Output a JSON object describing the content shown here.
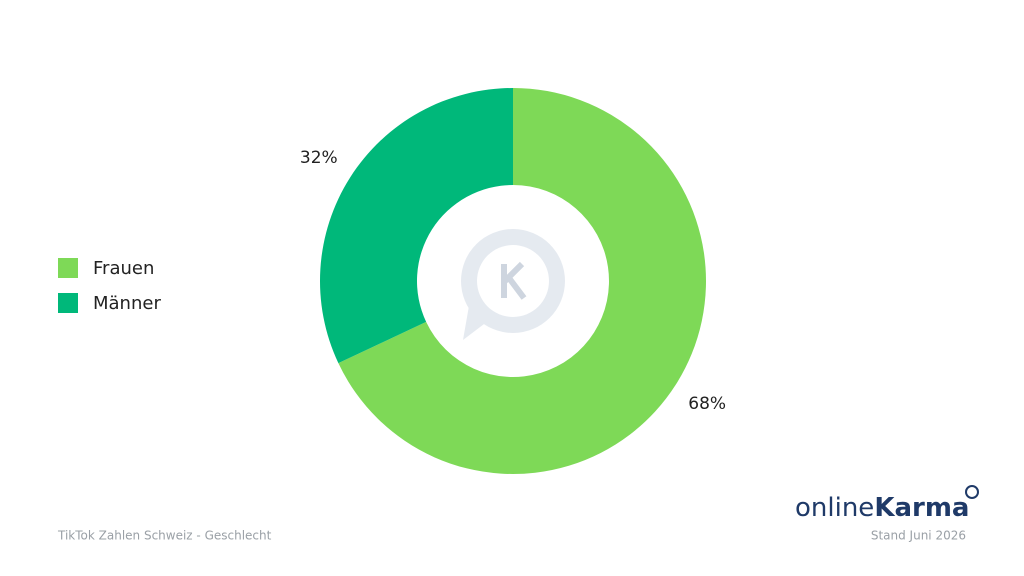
{
  "chart_data": {
    "type": "donut",
    "categories": [
      "Frauen",
      "Männer"
    ],
    "values": [
      68,
      32
    ],
    "value_labels": [
      "68%",
      "32%"
    ],
    "colors": [
      "#7ed957",
      "#00b87a"
    ],
    "legend": "left",
    "footer_left": "TikTok Zahlen Schweiz - Geschlecht",
    "footer_right": "Stand Juni 2026",
    "logo": {
      "light": "online",
      "bold": "Karma"
    }
  }
}
